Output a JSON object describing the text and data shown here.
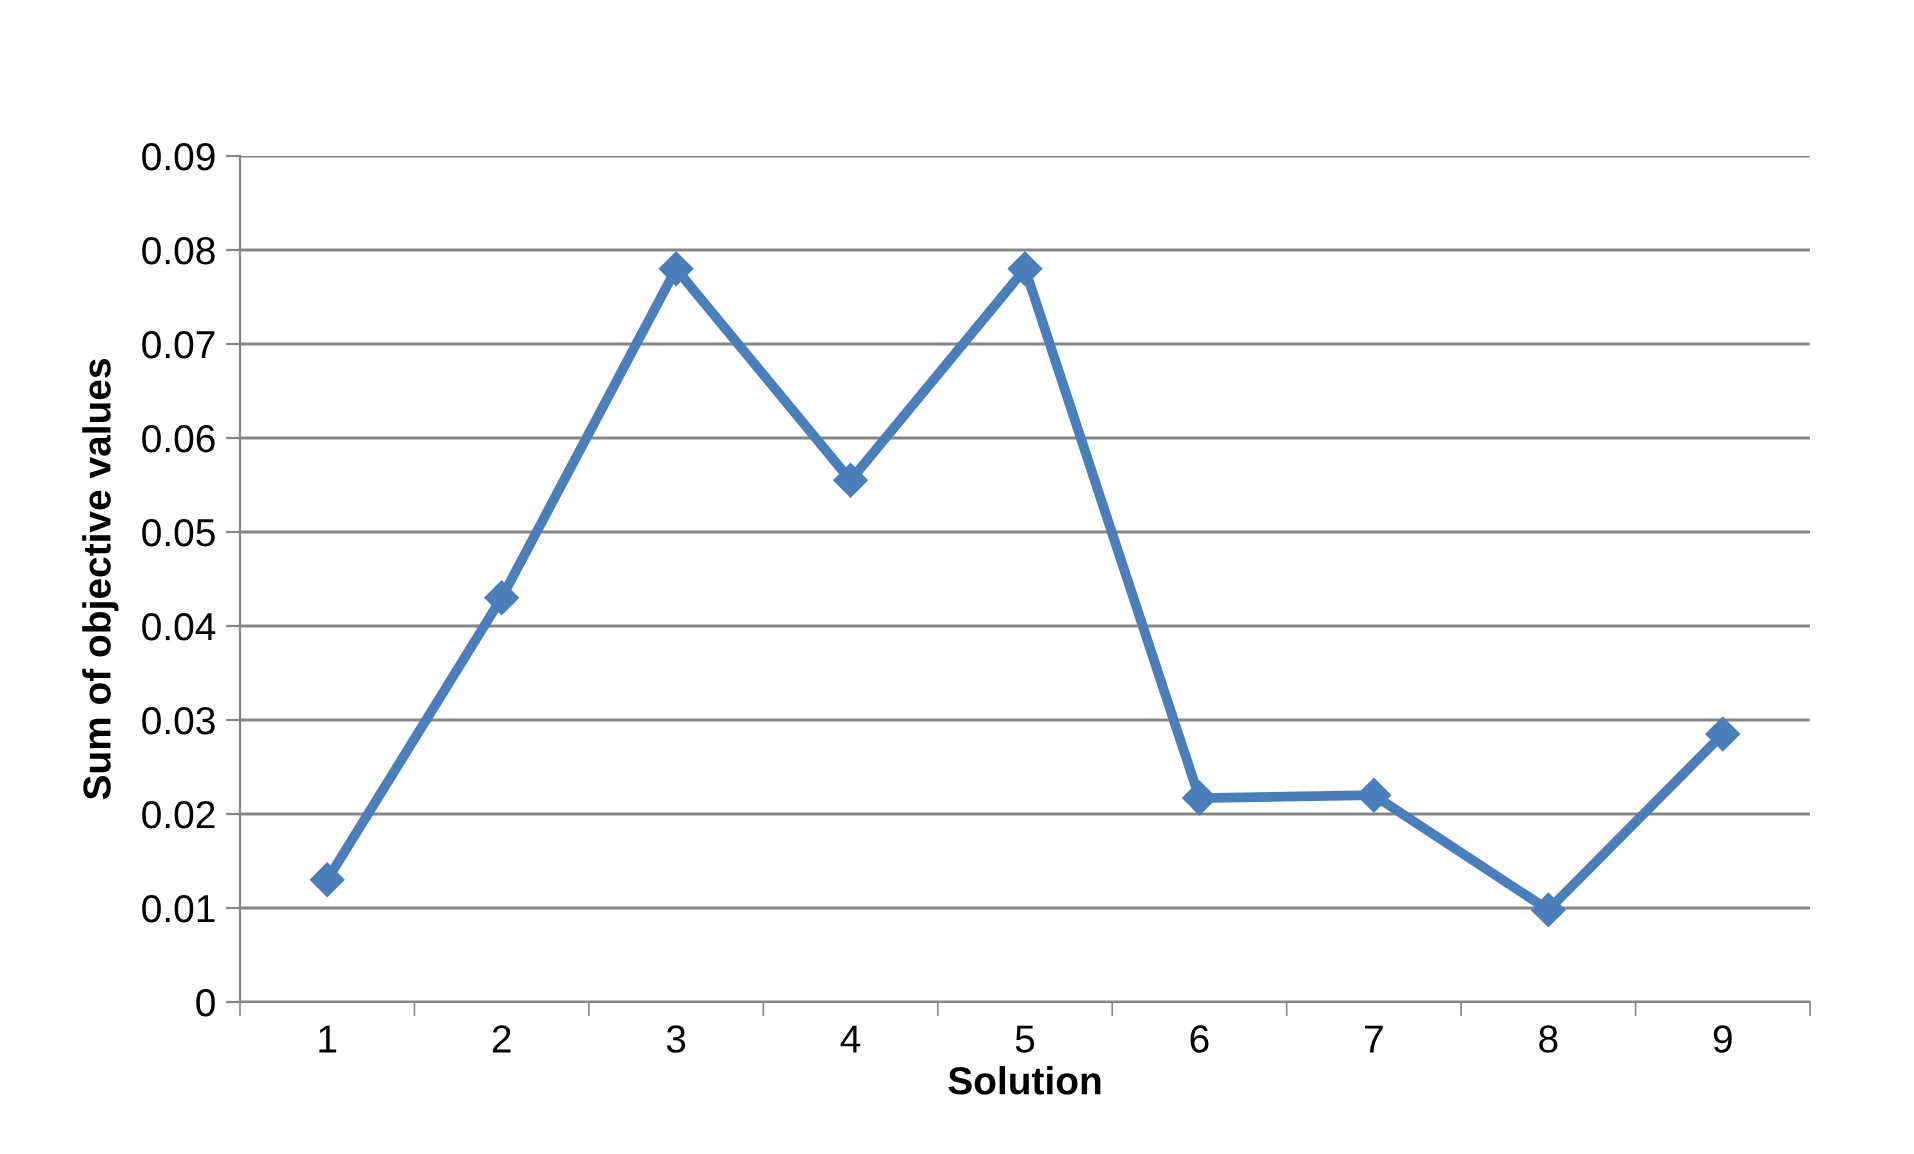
{
  "chart_data": {
    "type": "line",
    "xlabel": "Solution",
    "ylabel": "Sum of objective values",
    "categories": [
      "1",
      "2",
      "3",
      "4",
      "5",
      "6",
      "7",
      "8",
      "9"
    ],
    "series": [
      {
        "color": "#4a7ebb",
        "values": [
          0.013,
          0.043,
          0.078,
          0.0555,
          0.078,
          0.0217,
          0.022,
          0.0098,
          0.0285
        ]
      }
    ],
    "ylim": [
      0,
      0.09
    ],
    "yticks": [
      {
        "value": 0,
        "label": "0"
      },
      0.01,
      0.02,
      0.03,
      0.04,
      0.05,
      0.06,
      0.07,
      0.08,
      0.09
    ],
    "grid": "y",
    "marker": "diamond",
    "line_style": "solid",
    "legend": false
  }
}
